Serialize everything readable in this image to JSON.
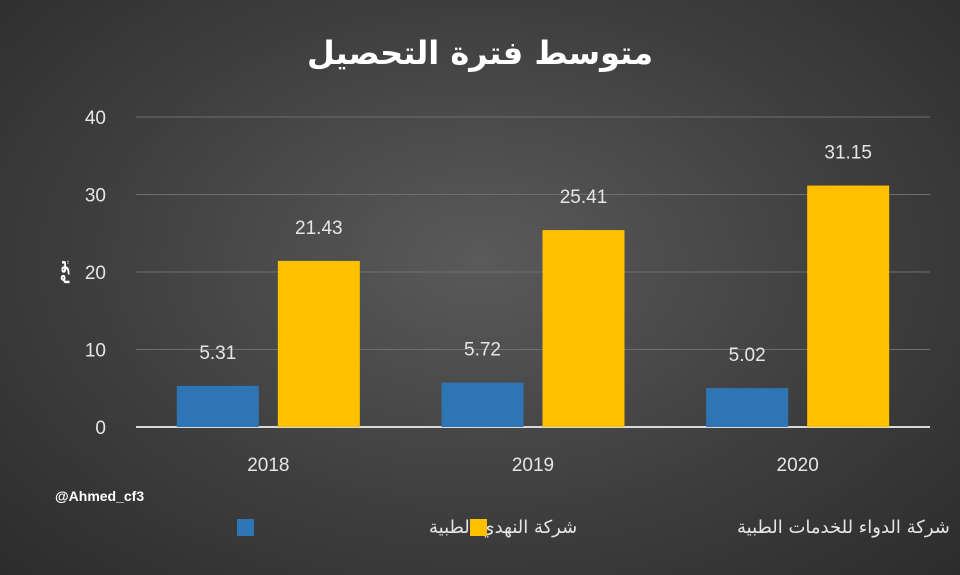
{
  "chart_data": {
    "type": "bar",
    "title": "متوسط فترة التحصيل",
    "ylabel": "يوم",
    "xlabel": "",
    "categories": [
      "2018",
      "2019",
      "2020"
    ],
    "series": [
      {
        "name": "شركة النهدي الطبية",
        "color": "#2e75b6",
        "values": [
          5.31,
          5.72,
          5.02
        ]
      },
      {
        "name": "شركة الدواء للخدمات الطبية",
        "color": "#ffc000",
        "values": [
          21.43,
          25.41,
          31.15
        ]
      }
    ],
    "data_labels": [
      [
        "5.31",
        "5.72",
        "5.02"
      ],
      [
        "21.43",
        "25.41",
        "31.15"
      ]
    ],
    "ylim": [
      0,
      40
    ],
    "yticks": [
      "0",
      "10",
      "20",
      "30",
      "40"
    ],
    "grid": true,
    "legend_position": "bottom"
  },
  "watermark": "@Ahmed_cf3",
  "background_color": "#3f3f3f"
}
